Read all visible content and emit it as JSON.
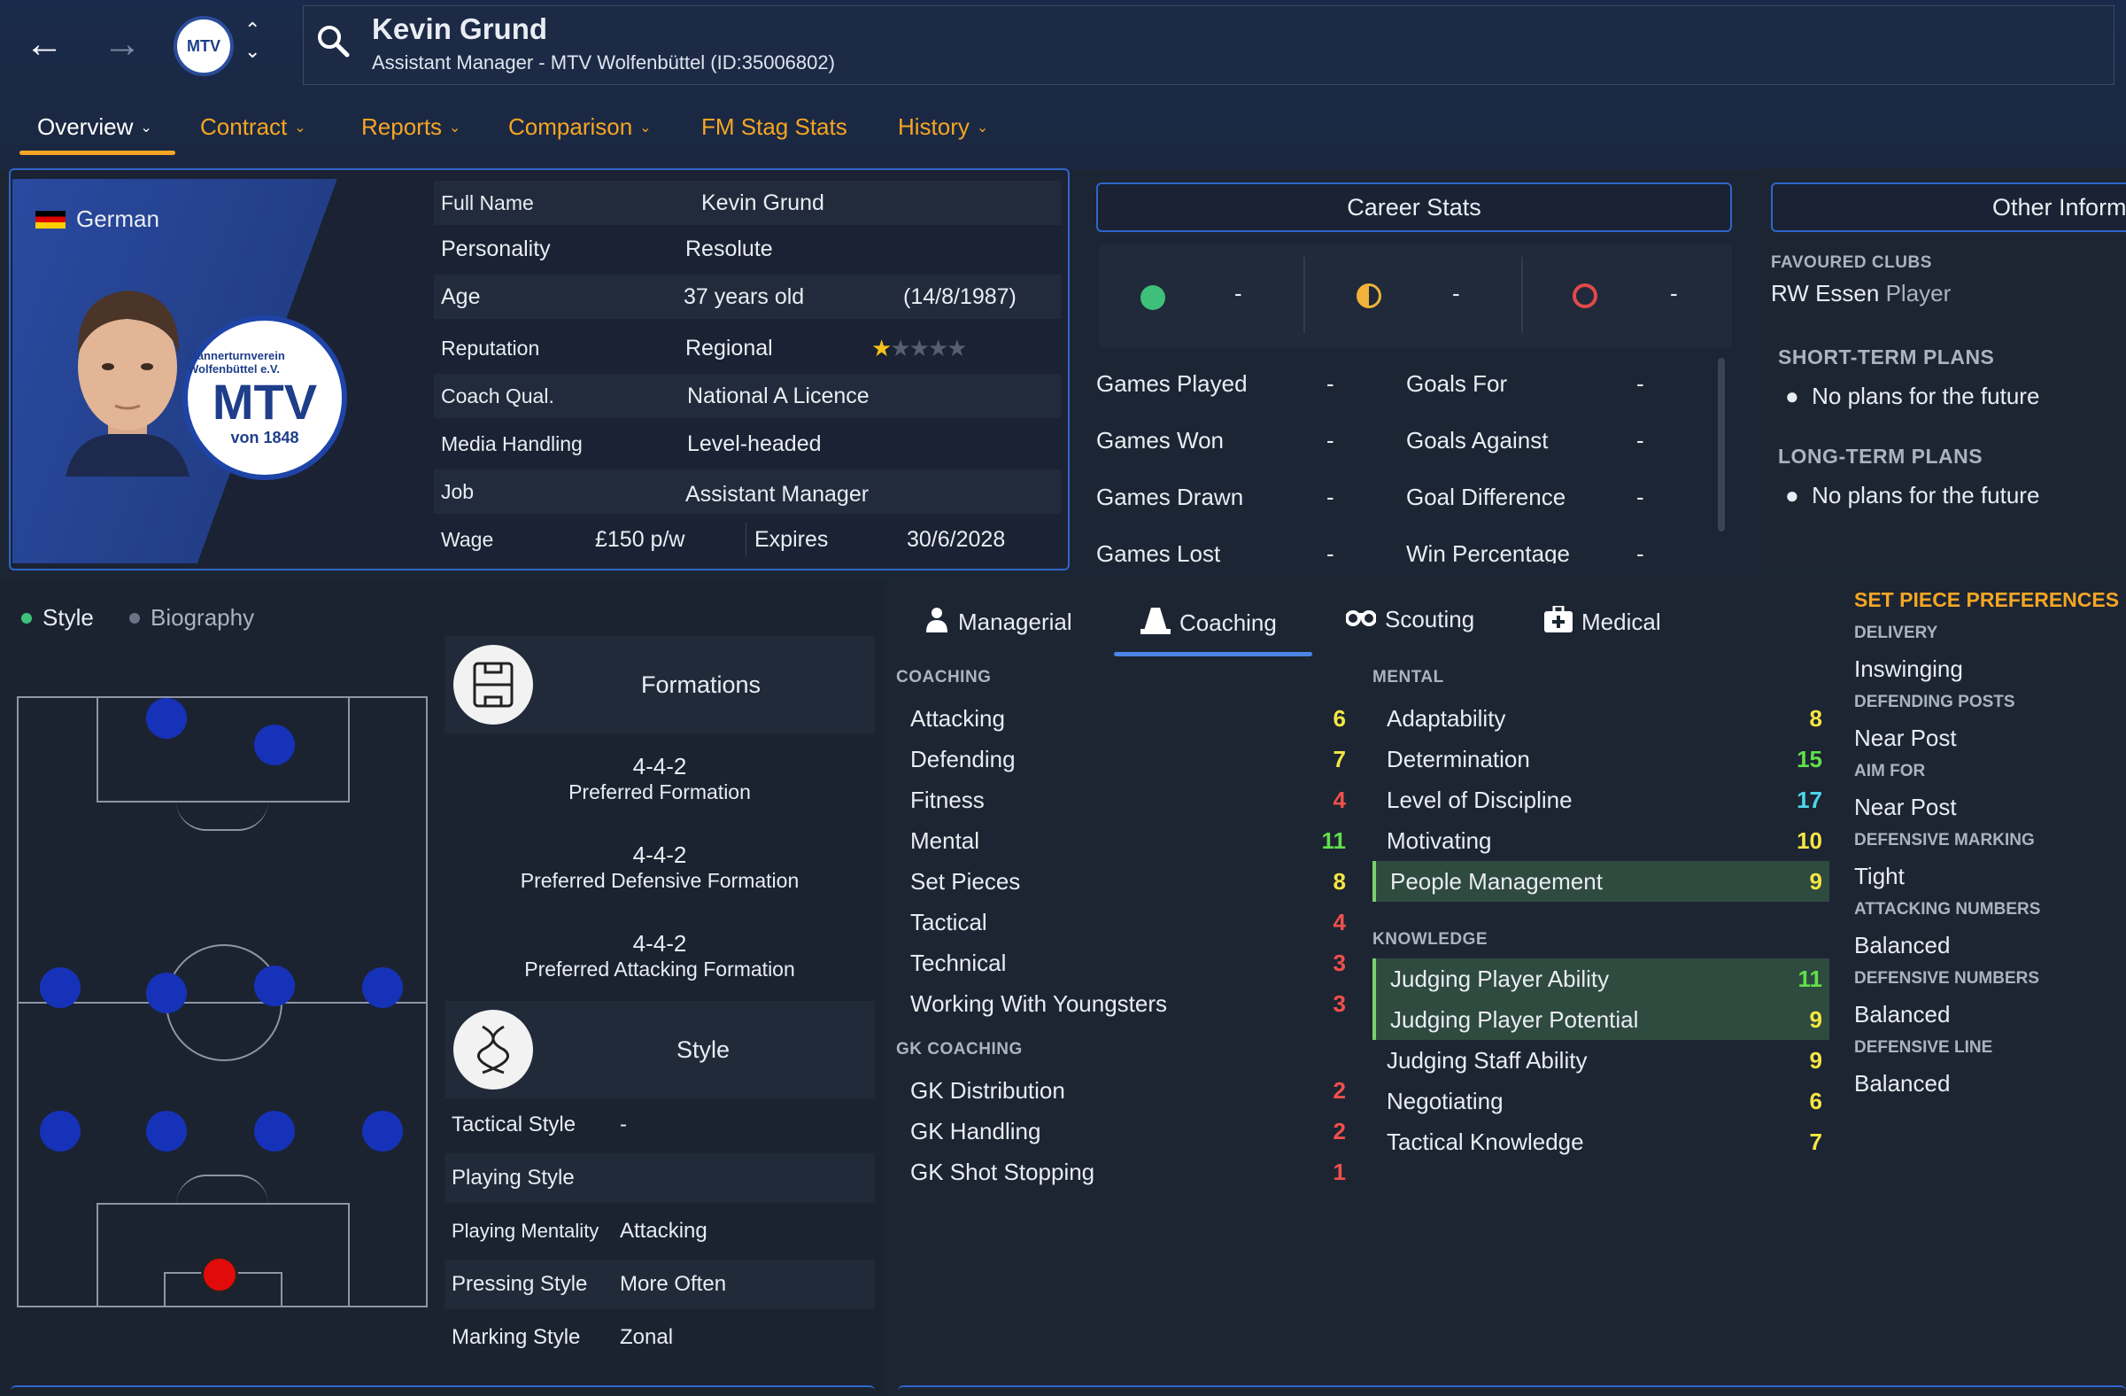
{
  "header": {
    "name": "Kevin Grund",
    "subtitle": "Assistant Manager - MTV Wolfenbüttel (ID:35006802)",
    "club_short": "MTV"
  },
  "tabs": [
    {
      "label": "Overview",
      "has_menu": true,
      "active": true
    },
    {
      "label": "Contract",
      "has_menu": true
    },
    {
      "label": "Reports",
      "has_menu": true
    },
    {
      "label": "Comparison",
      "has_menu": true
    },
    {
      "label": "FM Stag Stats",
      "has_menu": false
    },
    {
      "label": "History",
      "has_menu": true
    }
  ],
  "profile": {
    "nationality": "German",
    "badge_top": "Männerturnverein Wolfenbüttel e.V.",
    "badge_mid": "MTV",
    "badge_bottom": "von 1848",
    "full_name_label": "Full Name",
    "full_name": "Kevin Grund",
    "personality_label": "Personality",
    "personality": "Resolute",
    "age_label": "Age",
    "age": "37 years old",
    "dob": "(14/8/1987)",
    "reputation_label": "Reputation",
    "reputation": "Regional",
    "reputation_stars": 1,
    "coach_qual_label": "Coach Qual.",
    "coach_qual": "National A Licence",
    "media_label": "Media Handling",
    "media": "Level-headed",
    "job_label": "Job",
    "job": "Assistant Manager",
    "wage_label": "Wage",
    "wage": "£150 p/w",
    "expires_label": "Expires",
    "expires": "30/6/2028"
  },
  "career_stats": {
    "title": "Career Stats",
    "summary": [
      "-",
      "-",
      "-"
    ],
    "left": [
      {
        "label": "Games Played",
        "value": "-"
      },
      {
        "label": "Games Won",
        "value": "-"
      },
      {
        "label": "Games Drawn",
        "value": "-"
      },
      {
        "label": "Games Lost",
        "value": "-"
      }
    ],
    "right": [
      {
        "label": "Goals For",
        "value": "-"
      },
      {
        "label": "Goals Against",
        "value": "-"
      },
      {
        "label": "Goal Difference",
        "value": "-"
      },
      {
        "label": "Win Percentage",
        "value": "-"
      }
    ]
  },
  "other_info": {
    "title": "Other Inform",
    "favoured_clubs_label": "FAVOURED CLUBS",
    "favoured_club": "RW Essen",
    "favoured_club_role": "Player",
    "short_term_label": "SHORT-TERM PLANS",
    "short_term": "No plans for the future",
    "long_term_label": "LONG-TERM PLANS",
    "long_term": "No plans for the future"
  },
  "style_tabs": {
    "style": "Style",
    "biography": "Biography"
  },
  "formations": {
    "title": "Formations",
    "preferred": "4-4-2",
    "preferred_label": "Preferred Formation",
    "defensive": "4-4-2",
    "defensive_label": "Preferred Defensive Formation",
    "attacking": "4-4-2",
    "attacking_label": "Preferred Attacking Formation"
  },
  "style": {
    "title": "Style",
    "rows": [
      {
        "label": "Tactical Style",
        "value": "-"
      },
      {
        "label": "Playing Style",
        "value": ""
      },
      {
        "label": "Playing Mentality",
        "value": "Attacking"
      },
      {
        "label": "Pressing Style",
        "value": "More Often"
      },
      {
        "label": "Marking Style",
        "value": "Zonal"
      }
    ]
  },
  "attr_tabs": [
    {
      "label": "Managerial",
      "icon": "person-icon"
    },
    {
      "label": "Coaching",
      "icon": "cone-icon",
      "active": true
    },
    {
      "label": "Scouting",
      "icon": "binoculars-icon"
    },
    {
      "label": "Medical",
      "icon": "medical-kit-icon"
    }
  ],
  "coaching": {
    "label": "COACHING",
    "items": [
      {
        "label": "Attacking",
        "value": 6
      },
      {
        "label": "Defending",
        "value": 7
      },
      {
        "label": "Fitness",
        "value": 4
      },
      {
        "label": "Mental",
        "value": 11
      },
      {
        "label": "Set Pieces",
        "value": 8
      },
      {
        "label": "Tactical",
        "value": 4
      },
      {
        "label": "Technical",
        "value": 3
      },
      {
        "label": "Working With Youngsters",
        "value": 3
      }
    ]
  },
  "gk_coaching": {
    "label": "GK COACHING",
    "items": [
      {
        "label": "GK Distribution",
        "value": 2
      },
      {
        "label": "GK Handling",
        "value": 2
      },
      {
        "label": "GK Shot Stopping",
        "value": 1
      }
    ]
  },
  "mental": {
    "label": "MENTAL",
    "items": [
      {
        "label": "Adaptability",
        "value": 8
      },
      {
        "label": "Determination",
        "value": 15
      },
      {
        "label": "Level of Discipline",
        "value": 17
      },
      {
        "label": "Motivating",
        "value": 10
      },
      {
        "label": "People Management",
        "value": 9,
        "highlight": true
      }
    ]
  },
  "knowledge": {
    "label": "KNOWLEDGE",
    "items": [
      {
        "label": "Judging Player Ability",
        "value": 11,
        "highlight": true
      },
      {
        "label": "Judging Player Potential",
        "value": 9,
        "highlight": true
      },
      {
        "label": "Judging Staff Ability",
        "value": 9
      },
      {
        "label": "Negotiating",
        "value": 6
      },
      {
        "label": "Tactical Knowledge",
        "value": 7
      }
    ]
  },
  "set_pieces": {
    "title": "SET PIECE PREFERENCES",
    "items": [
      {
        "label": "DELIVERY",
        "value": "Inswinging"
      },
      {
        "label": "DEFENDING POSTS",
        "value": "Near Post"
      },
      {
        "label": "AIM FOR",
        "value": "Near Post"
      },
      {
        "label": "DEFENSIVE MARKING",
        "value": "Tight"
      },
      {
        "label": "ATTACKING NUMBERS",
        "value": "Balanced"
      },
      {
        "label": "DEFENSIVE NUMBERS",
        "value": "Balanced"
      },
      {
        "label": "DEFENSIVE LINE",
        "value": "Balanced"
      }
    ]
  },
  "colors": {
    "accent": "#f5a623",
    "card_border": "#2f66c8",
    "player_dot": "#1632b8",
    "gk_dot": "#e10b0b"
  }
}
